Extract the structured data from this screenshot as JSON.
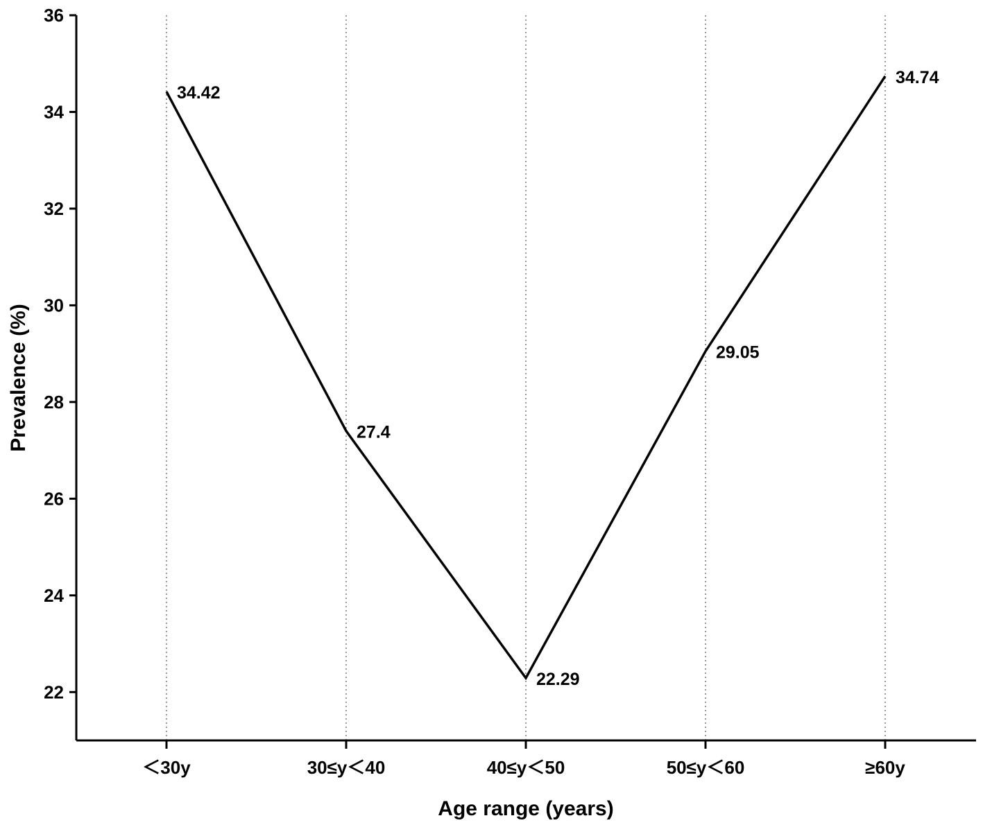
{
  "chart_data": {
    "type": "line",
    "categories": [
      "＜30y",
      "30≤y＜40",
      "40≤y＜50",
      "50≤y＜60",
      "≥60y"
    ],
    "series": [
      {
        "values": [
          34.42,
          27.4,
          22.29,
          29.05,
          34.74
        ],
        "color": "#000000"
      }
    ],
    "data_labels": [
      "34.42",
      "27.4",
      "22.29",
      "29.05",
      "34.74"
    ],
    "xlabel": "Age range (years)",
    "ylabel": "Prevalence (%)",
    "ylim": [
      21,
      36
    ],
    "yticks": [
      22,
      24,
      26,
      28,
      30,
      32,
      34,
      36
    ],
    "ytick_labels": [
      "22",
      "24",
      "26",
      "28",
      "30",
      "32",
      "34",
      "36"
    ],
    "grid": "vertical dotted lines at categories",
    "legend": "none"
  }
}
